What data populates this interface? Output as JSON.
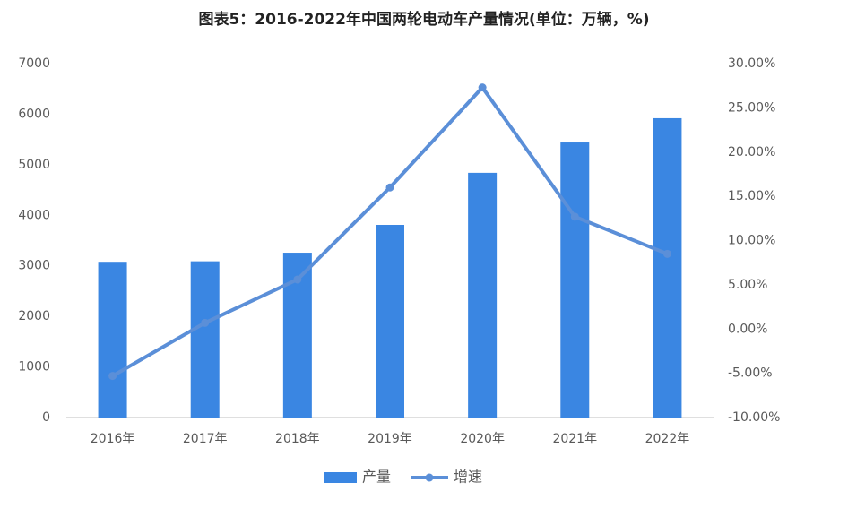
{
  "chart_data": {
    "type": "bar-line",
    "title": "图表5：2016-2022年中国两轮电动车产量情况(单位：万辆，%)",
    "categories": [
      "2016年",
      "2017年",
      "2018年",
      "2019年",
      "2020年",
      "2021年",
      "2022年"
    ],
    "series": [
      {
        "name": "产量",
        "color": "#3a86e2",
        "values": [
          3080,
          3090,
          3260,
          3810,
          4840,
          5440,
          5920
        ]
      },
      {
        "name": "增速",
        "color": "#5b8fd8",
        "axis": "y2",
        "values": [
          -5.3,
          0.7,
          5.6,
          16.0,
          27.3,
          12.7,
          8.5
        ]
      }
    ],
    "ylim": [
      0,
      7000
    ],
    "yticks": [
      0,
      1000,
      2000,
      3000,
      4000,
      5000,
      6000,
      7000
    ],
    "y2lim": [
      -10,
      30
    ],
    "y2ticks": [
      {
        "value": -10,
        "label": "-10.00%"
      },
      {
        "value": -5,
        "label": "-5.00%"
      },
      {
        "value": 0,
        "label": "0.00%"
      },
      {
        "value": 5,
        "label": "5.00%"
      },
      {
        "value": 10,
        "label": "10.00%"
      },
      {
        "value": 15,
        "label": "15.00%"
      },
      {
        "value": 20,
        "label": "20.00%"
      },
      {
        "value": 25,
        "label": "25.00%"
      },
      {
        "value": 30,
        "label": "30.00%"
      }
    ],
    "grid": false,
    "legend": "bottom"
  }
}
